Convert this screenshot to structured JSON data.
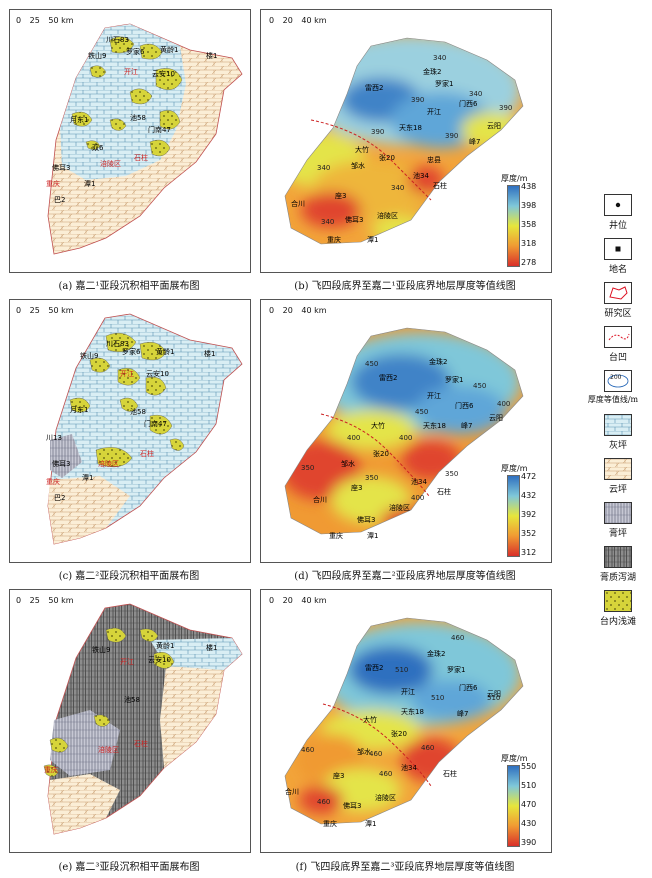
{
  "captions": {
    "a": "(a) 嘉二¹亚段沉积相平面展布图",
    "b": "(b) 飞四段底界至嘉二¹亚段底界地层厚度等值线图",
    "c": "(c) 嘉二²亚段沉积相平面展布图",
    "d": "(d) 飞四段底界至嘉二²亚段底界地层厚度等值线图",
    "e": "(e) 嘉二³亚段沉积相平面展布图",
    "f": "(f) 飞四段底界至嘉二³亚段底界地层厚度等值线图"
  },
  "scales": {
    "facies": {
      "ticks": [
        "0",
        "25",
        "50"
      ],
      "unit": "km"
    },
    "thickness": {
      "ticks": [
        "0",
        "20",
        "40"
      ],
      "unit": "km"
    }
  },
  "colorbars": {
    "b": {
      "title": "厚度/m",
      "ticks": [
        "438",
        "398",
        "358",
        "318",
        "278"
      ]
    },
    "d": {
      "title": "厚度/m",
      "ticks": [
        "472",
        "432",
        "392",
        "352",
        "312"
      ]
    },
    "f": {
      "title": "厚度/m",
      "ticks": [
        "550",
        "510",
        "470",
        "430",
        "390"
      ]
    }
  },
  "legend": [
    {
      "icon": "well-symbol-icon",
      "label": "井位"
    },
    {
      "icon": "place-symbol-icon",
      "label": "地名"
    },
    {
      "icon": "study-area-icon",
      "label": "研究区"
    },
    {
      "icon": "depression-icon",
      "label": "台凹"
    },
    {
      "icon": "contour-icon",
      "label": "厚度等值线/m",
      "sample": "200"
    },
    {
      "icon": "limestone-flat-icon",
      "label": "灰坪"
    },
    {
      "icon": "dolomite-flat-icon",
      "label": "云坪"
    },
    {
      "icon": "gypsum-flat-icon",
      "label": "膏坪"
    },
    {
      "icon": "gypsum-lagoon-icon",
      "label": "膏质泻湖"
    },
    {
      "icon": "shoal-icon",
      "label": "台内浅滩"
    }
  ],
  "map_labels": {
    "facies_a": [
      "川石83",
      "铁山9",
      "罗家6",
      "黄龄1",
      "楼1",
      "开江",
      "云安10",
      "月东1",
      "池58",
      "门南47",
      "双6",
      "石柱",
      "佛耳3",
      "涪陵区",
      "重庆",
      "潭1",
      "巴2"
    ],
    "facies_c": [
      "川石83",
      "铁山9",
      "罗家6",
      "黄龄1",
      "楼1",
      "开江",
      "云安10",
      "月东1",
      "池58",
      "门南47",
      "川13",
      "石柱",
      "佛耳3",
      "涪陵区",
      "重庆",
      "潭1",
      "巴2"
    ],
    "facies_e": [
      "铁山9",
      "黄龄1",
      "楼1",
      "开江",
      "云安10",
      "池58",
      "石柱",
      "涪陵区",
      "重庆"
    ],
    "thickness_b": [
      "金珠2",
      "罗家1",
      "雷西2",
      "门西6",
      "开江",
      "天东18",
      "云阳",
      "峰7",
      "大竹",
      "邹水",
      "张20",
      "忠县",
      "池34",
      "石柱",
      "座3",
      "合川",
      "佛耳3",
      "涪陵区",
      "重庆",
      "潭1"
    ],
    "thickness_d": [
      "金珠2",
      "罗家1",
      "雷西2",
      "开江",
      "门西6",
      "天东18",
      "云阳",
      "峰7",
      "大竹",
      "邹水",
      "张20",
      "池34",
      "石柱",
      "座3",
      "合川",
      "佛耳3",
      "涪陵区",
      "重庆",
      "潭1"
    ],
    "thickness_f": [
      "金珠2",
      "罗家1",
      "雷西2",
      "门西6",
      "开江",
      "天东18",
      "云阳",
      "峰7",
      "大竹",
      "邹水",
      "张20",
      "池34",
      "石柱",
      "座3",
      "合川",
      "佛耳3",
      "涪陵区",
      "重庆",
      "潭1"
    ],
    "contours_b": [
      "340",
      "390",
      "390",
      "340",
      "390",
      "340",
      "390",
      "340",
      "340"
    ],
    "contours_d": [
      "450",
      "450",
      "400",
      "400",
      "350",
      "350",
      "400",
      "350",
      "400",
      "450"
    ],
    "contours_f": [
      "460",
      "510",
      "510",
      "460",
      "460",
      "510",
      "460",
      "460",
      "460"
    ]
  },
  "colors": {
    "thick_high": "#2f6fbf",
    "thick_mid": "#e6e63c",
    "thick_low": "#d9302a",
    "dolomite": "#fbeed6",
    "limestone": "#d9eef4",
    "shoal": "#d6d43a",
    "gypsum": "#b9bbc9",
    "lagoon": "#8a8a8a"
  }
}
